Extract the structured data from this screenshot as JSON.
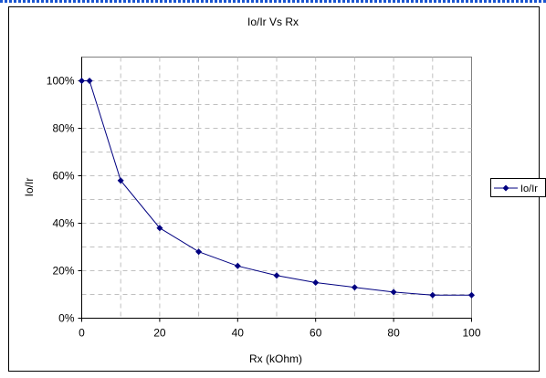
{
  "chart_data": {
    "type": "line",
    "title": "Io/Ir Vs Rx",
    "xlabel": "Rx (kOhm)",
    "ylabel": "Io/Ir",
    "xlim": [
      0,
      100
    ],
    "ylim": [
      0,
      1.1
    ],
    "x_ticks": [
      0,
      20,
      40,
      60,
      80,
      100
    ],
    "x_tick_labels": [
      "0",
      "20",
      "40",
      "60",
      "80",
      "100"
    ],
    "y_ticks": [
      0,
      0.2,
      0.4,
      0.6,
      0.8,
      1.0
    ],
    "y_tick_labels": [
      "0%",
      "20%",
      "40%",
      "60%",
      "80%",
      "100%"
    ],
    "grid": true,
    "legend_position": "right",
    "series": [
      {
        "name": "Io/Ir",
        "color": "#000080",
        "marker": "diamond",
        "x": [
          0,
          2,
          10,
          20,
          30,
          40,
          50,
          60,
          70,
          80,
          90,
          100
        ],
        "y": [
          1.0,
          1.0,
          0.58,
          0.38,
          0.28,
          0.22,
          0.18,
          0.15,
          0.13,
          0.11,
          0.097,
          0.097
        ]
      }
    ]
  }
}
